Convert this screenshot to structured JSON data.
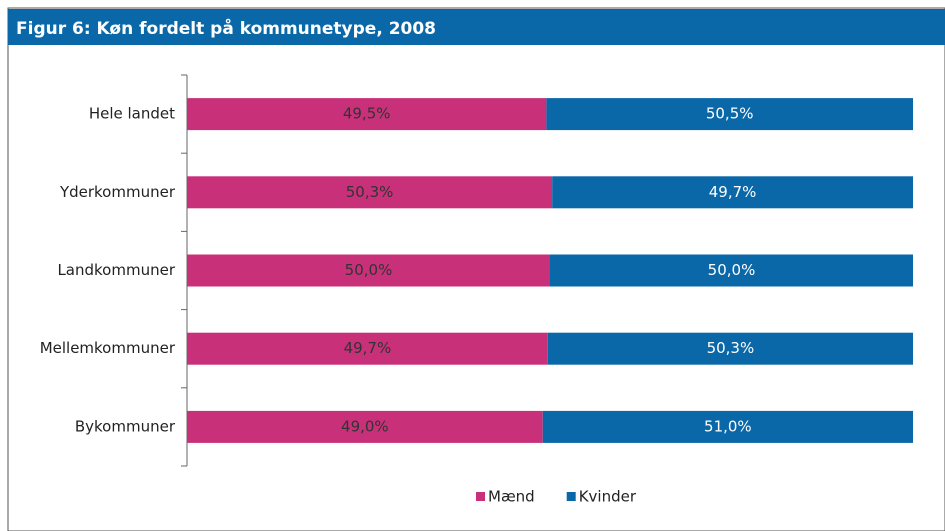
{
  "chart_data": {
    "type": "bar",
    "orientation": "horizontal",
    "stacked": true,
    "title": "Figur 6: Køn fordelt på kommunetype, 2008",
    "categories": [
      "Hele landet",
      "Yderkommuner",
      "Landkommuner",
      "Mellemkommuner",
      "Bykommuner"
    ],
    "series": [
      {
        "name": "Mænd",
        "color": "#c8317a",
        "values": [
          49.5,
          50.3,
          50.0,
          49.7,
          49.0
        ],
        "value_labels": [
          "49,5%",
          "50,3%",
          "50,0%",
          "49,7%",
          "49,0%"
        ]
      },
      {
        "name": "Kvinder",
        "color": "#0a68a8",
        "values": [
          50.5,
          49.7,
          50.0,
          50.3,
          51.0
        ],
        "value_labels": [
          "50,5%",
          "49,7%",
          "50,0%",
          "50,3%",
          "51,0%"
        ]
      }
    ]
  }
}
